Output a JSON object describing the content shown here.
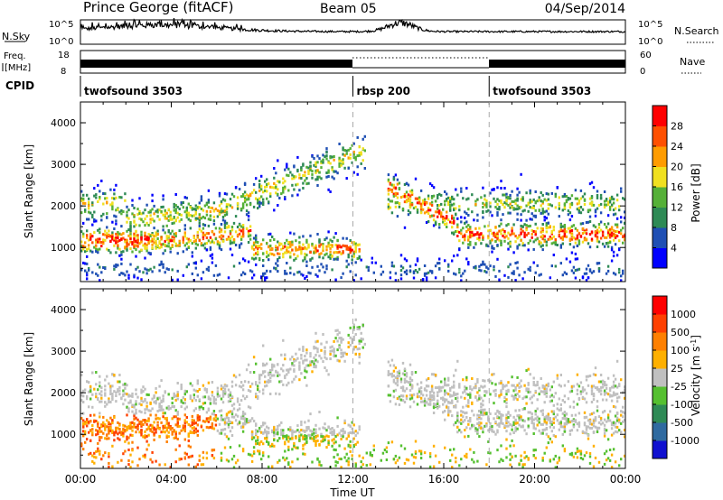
{
  "header": {
    "station": "Prince George (fitACF)",
    "beam": "Beam 05",
    "date": "04/Sep/2014"
  },
  "top_panels": {
    "nsky_label": "N.Sky",
    "nsky_ticks": [
      "10^5",
      "10^0"
    ],
    "nsearch_label": "N.Search",
    "nsearch_ticks": [
      "10^5",
      "10^0"
    ],
    "freq_label_1": "Freq.",
    "freq_label_2": "[MHz]",
    "freq_ticks": [
      "18",
      "8"
    ],
    "nave_label": "Nave",
    "nave_ticks": [
      "60",
      "0"
    ],
    "cpid_label": "CPID"
  },
  "cpid_segments": [
    {
      "start_h": 0,
      "end_h": 12,
      "label": "twofsound 3503"
    },
    {
      "start_h": 12,
      "end_h": 18,
      "label": "rbsp 200"
    },
    {
      "start_h": 18,
      "end_h": 24,
      "label": "twofsound 3503"
    }
  ],
  "chart_data": [
    {
      "type": "heatmap",
      "title": "",
      "xlabel": "",
      "ylabel": "Slant Range [km]",
      "xlim": [
        0,
        24
      ],
      "ylim": [
        180,
        4500
      ],
      "yticks": [
        "1000",
        "2000",
        "3000",
        "4000"
      ],
      "colorbar": {
        "label": "Power [dB]",
        "ticks": [
          "28",
          "24",
          "20",
          "16",
          "12",
          "8",
          "4"
        ],
        "colors": [
          "#0000ff",
          "#1f4fb4",
          "#2e8a55",
          "#55b038",
          "#f0e020",
          "#ff9c00",
          "#ff5000",
          "#ff0000"
        ]
      }
    },
    {
      "type": "heatmap",
      "title": "",
      "xlabel": "Time UT",
      "ylabel": "Slant Range [km]",
      "xlim": [
        0,
        24
      ],
      "ylim": [
        180,
        4500
      ],
      "xticks": [
        "00:00",
        "04:00",
        "08:00",
        "12:00",
        "16:00",
        "20:00",
        "00:00"
      ],
      "yticks": [
        "1000",
        "2000",
        "3000",
        "4000"
      ],
      "colorbar": {
        "label": "Velocity [m s",
        "label_sup": "-1",
        "label_end": "]",
        "ticks": [
          "1000",
          "500",
          "100",
          "25",
          "-25",
          "-100",
          "-500",
          "-1000"
        ],
        "colors": [
          "#1010d0",
          "#2f6aa0",
          "#2e8a55",
          "#55c030",
          "#c0c0c0",
          "#ffb000",
          "#ff8000",
          "#ff4000",
          "#ff0000"
        ]
      }
    }
  ]
}
